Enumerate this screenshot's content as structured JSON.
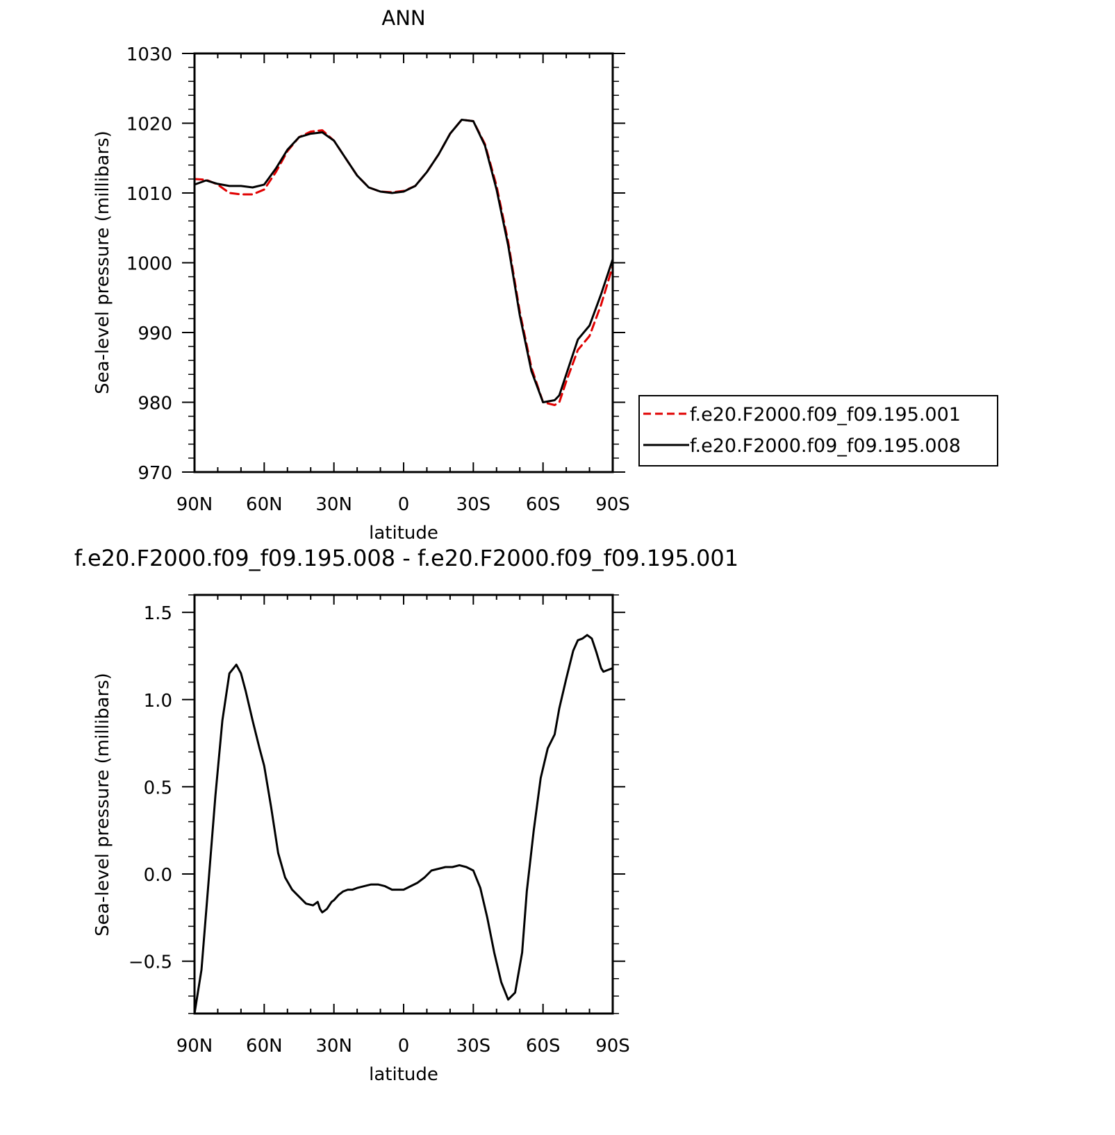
{
  "chart_data": [
    {
      "type": "line",
      "title": "ANN",
      "xlabel": "latitude",
      "ylabel": "Sea-level pressure (millibars)",
      "x_tick_values": [
        90,
        60,
        30,
        0,
        -30,
        -60,
        -90
      ],
      "x_tick_labels": [
        "90N",
        "60N",
        "30N",
        "0",
        "30S",
        "60S",
        "90S"
      ],
      "xlim": [
        90,
        -90
      ],
      "y_ticks": [
        970,
        980,
        990,
        1000,
        1010,
        1020,
        1030
      ],
      "y_tick_labels": [
        "970",
        "980",
        "990",
        "1000",
        "1010",
        "1020",
        "1030"
      ],
      "ylim": [
        970,
        1030
      ],
      "grid": false,
      "legend_position": "right",
      "series": [
        {
          "name": "f.e20.F2000.f09_f09.195.001",
          "color": "#e00000",
          "dash": "dashed",
          "x": [
            90,
            85,
            80,
            75,
            70,
            65,
            60,
            55,
            50,
            45,
            40,
            35,
            30,
            25,
            20,
            15,
            10,
            5,
            0,
            -5,
            -10,
            -15,
            -20,
            -25,
            -30,
            -35,
            -40,
            -45,
            -50,
            -55,
            -60,
            -65,
            -67,
            -70,
            -75,
            -80,
            -85,
            -90
          ],
          "y": [
            1012.0,
            1011.9,
            1011.2,
            1010.0,
            1009.8,
            1009.8,
            1010.5,
            1013.0,
            1016.0,
            1018.0,
            1018.8,
            1019.0,
            1017.5,
            1015.0,
            1012.5,
            1010.8,
            1010.2,
            1010.1,
            1010.3,
            1011.0,
            1013.0,
            1015.5,
            1018.5,
            1020.5,
            1020.3,
            1017.0,
            1011.0,
            1003.0,
            993.0,
            985.0,
            980.0,
            979.6,
            980.0,
            983.0,
            987.5,
            989.5,
            994.0,
            999.5
          ]
        },
        {
          "name": "f.e20.F2000.f09_f09.195.008",
          "color": "#000000",
          "dash": "solid",
          "x": [
            90,
            85,
            80,
            75,
            70,
            65,
            60,
            55,
            50,
            45,
            40,
            35,
            30,
            25,
            20,
            15,
            10,
            5,
            0,
            -5,
            -10,
            -15,
            -20,
            -25,
            -30,
            -35,
            -40,
            -45,
            -50,
            -55,
            -60,
            -65,
            -67,
            -70,
            -75,
            -80,
            -85,
            -90
          ],
          "y": [
            1011.2,
            1011.8,
            1011.3,
            1011.0,
            1011.0,
            1010.8,
            1011.2,
            1013.5,
            1016.2,
            1018.0,
            1018.5,
            1018.7,
            1017.5,
            1015.0,
            1012.5,
            1010.8,
            1010.2,
            1010.0,
            1010.2,
            1011.0,
            1013.0,
            1015.5,
            1018.5,
            1020.5,
            1020.3,
            1016.8,
            1010.5,
            1002.5,
            992.5,
            984.5,
            980.0,
            980.3,
            981.0,
            984.0,
            989.0,
            991.0,
            995.5,
            1000.5
          ]
        }
      ]
    },
    {
      "type": "line",
      "title": "f.e20.F2000.f09_f09.195.008 - f.e20.F2000.f09_f09.195.001",
      "xlabel": "latitude",
      "ylabel": "Sea-level pressure (millibars)",
      "x_tick_values": [
        90,
        60,
        30,
        0,
        -30,
        -60,
        -90
      ],
      "x_tick_labels": [
        "90N",
        "60N",
        "30N",
        "0",
        "30S",
        "60S",
        "90S"
      ],
      "xlim": [
        90,
        -90
      ],
      "y_ticks": [
        -0.5,
        0.0,
        0.5,
        1.0,
        1.5
      ],
      "y_tick_labels": [
        "−0.5",
        "0.0",
        "0.5",
        "1.0",
        "1.5"
      ],
      "ylim": [
        -0.8,
        1.6
      ],
      "grid": false,
      "series": [
        {
          "color": "#000000",
          "dash": "solid",
          "x": [
            90,
            87,
            84,
            81,
            78,
            75,
            72,
            70,
            68,
            65,
            62,
            60,
            57,
            54,
            51,
            48,
            45,
            42,
            39,
            37,
            36,
            35,
            34,
            33,
            32,
            31,
            30,
            28,
            26,
            24,
            22,
            20,
            17,
            14,
            11,
            8,
            5,
            2,
            0,
            -3,
            -6,
            -9,
            -12,
            -15,
            -18,
            -21,
            -24,
            -27,
            -30,
            -33,
            -36,
            -39,
            -42,
            -45,
            -48,
            -51,
            -53,
            -56,
            -59,
            -62,
            -65,
            -67,
            -70,
            -73,
            -75,
            -77,
            -79,
            -81,
            -83,
            -85,
            -86,
            -88,
            -90
          ],
          "y": [
            -0.8,
            -0.55,
            -0.05,
            0.45,
            0.88,
            1.15,
            1.2,
            1.15,
            1.05,
            0.88,
            0.72,
            0.62,
            0.38,
            0.12,
            -0.02,
            -0.09,
            -0.13,
            -0.17,
            -0.18,
            -0.16,
            -0.2,
            -0.22,
            -0.21,
            -0.2,
            -0.18,
            -0.16,
            -0.15,
            -0.12,
            -0.1,
            -0.09,
            -0.09,
            -0.08,
            -0.07,
            -0.06,
            -0.06,
            -0.07,
            -0.09,
            -0.09,
            -0.09,
            -0.07,
            -0.05,
            -0.02,
            0.02,
            0.03,
            0.04,
            0.04,
            0.05,
            0.04,
            0.02,
            -0.08,
            -0.25,
            -0.45,
            -0.62,
            -0.72,
            -0.68,
            -0.45,
            -0.1,
            0.25,
            0.55,
            0.72,
            0.8,
            0.95,
            1.12,
            1.28,
            1.34,
            1.35,
            1.37,
            1.35,
            1.27,
            1.18,
            1.16,
            1.17,
            1.18
          ]
        }
      ]
    }
  ]
}
